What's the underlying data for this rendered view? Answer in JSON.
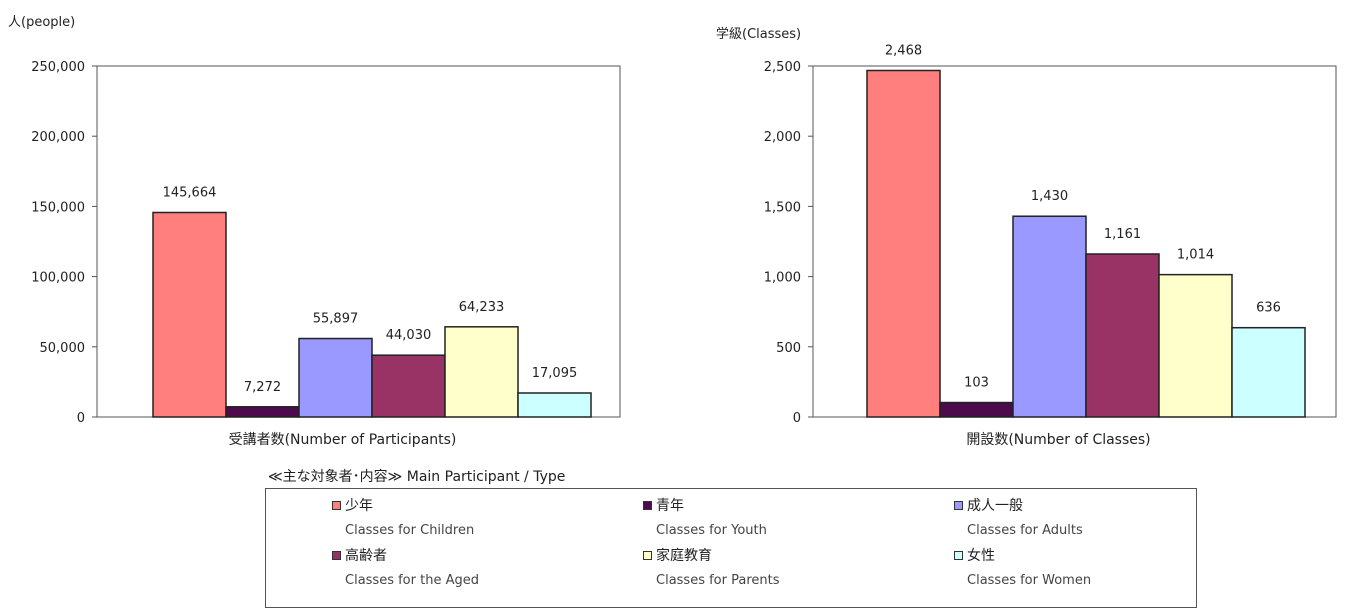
{
  "chart_data": [
    {
      "type": "bar",
      "ylabel": "人(people)",
      "xlabel": "受講者数(Number of Participants)",
      "ylim": [
        0,
        250000
      ],
      "yticks": [
        0,
        50000,
        100000,
        150000,
        200000,
        250000
      ],
      "ytick_labels": [
        "0",
        "50,000",
        "100,000",
        "150,000",
        "200,000",
        "250,000"
      ],
      "categories": [
        "少年",
        "青年",
        "成人一般",
        "高齢者",
        "家庭教育",
        "女性"
      ],
      "values": [
        145664,
        7272,
        55897,
        44030,
        64233,
        17095
      ],
      "value_labels": [
        "145,664",
        "7,272",
        "55,897",
        "44,030",
        "64,233",
        "17,095"
      ]
    },
    {
      "type": "bar",
      "ylabel": "学級(Classes)",
      "xlabel": "開設数(Number of Classes)",
      "ylim": [
        0,
        2500
      ],
      "yticks": [
        0,
        500,
        1000,
        1500,
        2000,
        2500
      ],
      "ytick_labels": [
        "0",
        "500",
        "1,000",
        "1,500",
        "2,000",
        "2,500"
      ],
      "categories": [
        "少年",
        "青年",
        "成人一般",
        "高齢者",
        "家庭教育",
        "女性"
      ],
      "values": [
        2468,
        103,
        1430,
        1161,
        1014,
        636
      ],
      "value_labels": [
        "2,468",
        "103",
        "1,430",
        "1,161",
        "1,014",
        "636"
      ]
    }
  ],
  "colors": [
    "#ff7f7f",
    "#4d0a4d",
    "#9999ff",
    "#993366",
    "#ffffcc",
    "#ccffff"
  ],
  "legend": {
    "title": "≪主な対象者･内容≫ Main Participant / Type",
    "items": [
      {
        "ja": "少年",
        "en": "Classes for Children"
      },
      {
        "ja": "青年",
        "en": "Classes for Youth"
      },
      {
        "ja": "成人一般",
        "en": "Classes for Adults"
      },
      {
        "ja": "高齢者",
        "en": "Classes for the Aged"
      },
      {
        "ja": "家庭教育",
        "en": "Classes for Parents"
      },
      {
        "ja": "女性",
        "en": "Classes for Women"
      }
    ]
  }
}
